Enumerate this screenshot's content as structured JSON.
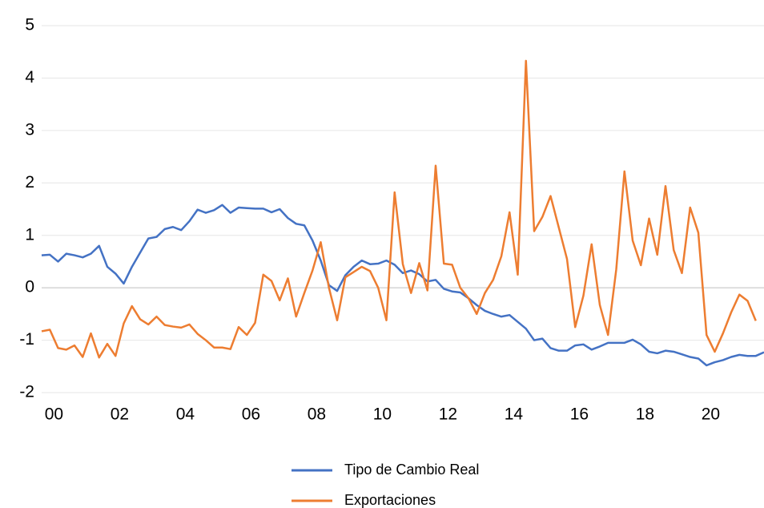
{
  "chart_data": {
    "type": "line",
    "categories": [
      null,
      "00",
      null,
      null,
      null,
      null,
      null,
      null,
      null,
      "02",
      null,
      null,
      null,
      null,
      null,
      null,
      null,
      "04",
      null,
      null,
      null,
      null,
      null,
      null,
      null,
      "06",
      null,
      null,
      null,
      null,
      null,
      null,
      null,
      "08",
      null,
      null,
      null,
      null,
      null,
      null,
      null,
      "10",
      null,
      null,
      null,
      null,
      null,
      null,
      null,
      "12",
      null,
      null,
      null,
      null,
      null,
      null,
      null,
      "14",
      null,
      null,
      null,
      null,
      null,
      null,
      null,
      "16",
      null,
      null,
      null,
      null,
      null,
      null,
      null,
      "18",
      null,
      null,
      null,
      null,
      null,
      null,
      null,
      "20",
      null,
      null,
      null,
      null,
      null,
      null,
      null
    ],
    "series": [
      {
        "name": "Tipo de Cambio Real",
        "color": "#4472c4",
        "values": [
          0.62,
          0.63,
          0.5,
          0.65,
          0.62,
          0.58,
          0.65,
          0.8,
          0.4,
          0.27,
          0.08,
          0.4,
          0.67,
          0.94,
          0.97,
          1.12,
          1.16,
          1.1,
          1.27,
          1.49,
          1.43,
          1.48,
          1.58,
          1.43,
          1.53,
          1.52,
          1.51,
          1.51,
          1.44,
          1.5,
          1.33,
          1.22,
          1.19,
          0.9,
          0.52,
          0.05,
          -0.06,
          0.24,
          0.4,
          0.52,
          0.45,
          0.46,
          0.52,
          0.44,
          0.28,
          0.33,
          0.26,
          0.12,
          0.15,
          -0.02,
          -0.07,
          -0.09,
          -0.2,
          -0.33,
          -0.44,
          -0.5,
          -0.55,
          -0.52,
          -0.65,
          -0.78,
          -1.0,
          -0.97,
          -1.15,
          -1.2,
          -1.2,
          -1.1,
          -1.08,
          -1.18,
          -1.12,
          -1.05,
          -1.05,
          -1.05,
          -0.99,
          -1.08,
          -1.22,
          -1.25,
          -1.2,
          -1.22,
          -1.27,
          -1.32,
          -1.35,
          -1.48,
          -1.42,
          -1.38,
          -1.32,
          -1.28,
          -1.3,
          -1.3,
          -1.23
        ]
      },
      {
        "name": "Exportaciones",
        "color": "#ed7d31",
        "values": [
          -0.83,
          -0.8,
          -1.15,
          -1.18,
          -1.1,
          -1.32,
          -0.87,
          -1.33,
          -1.07,
          -1.3,
          -0.68,
          -0.35,
          -0.6,
          -0.7,
          -0.55,
          -0.71,
          -0.74,
          -0.76,
          -0.7,
          -0.88,
          -1.0,
          -1.14,
          -1.14,
          -1.17,
          -0.75,
          -0.9,
          -0.67,
          0.25,
          0.13,
          -0.24,
          0.18,
          -0.55,
          -0.1,
          0.33,
          0.87,
          0.0,
          -0.62,
          0.2,
          0.3,
          0.4,
          0.32,
          0.0,
          -0.62,
          1.82,
          0.45,
          -0.1,
          0.47,
          -0.05,
          2.33,
          0.46,
          0.44,
          0.0,
          -0.2,
          -0.5,
          -0.1,
          0.15,
          0.6,
          1.44,
          0.25,
          4.33,
          1.08,
          1.35,
          1.75,
          1.15,
          0.55,
          -0.75,
          -0.15,
          0.83,
          -0.33,
          -0.9,
          0.35,
          2.22,
          0.9,
          0.43,
          1.32,
          0.63,
          1.94,
          0.72,
          0.28,
          1.53,
          1.05,
          -0.9,
          -1.22,
          -0.87,
          -0.47,
          -0.13,
          -0.25,
          -0.63,
          null
        ]
      }
    ],
    "ylim": [
      -2,
      5
    ],
    "yticks": [
      -2,
      -1,
      0,
      1,
      2,
      3,
      4,
      5
    ],
    "grid": true,
    "legend": "bottom"
  }
}
